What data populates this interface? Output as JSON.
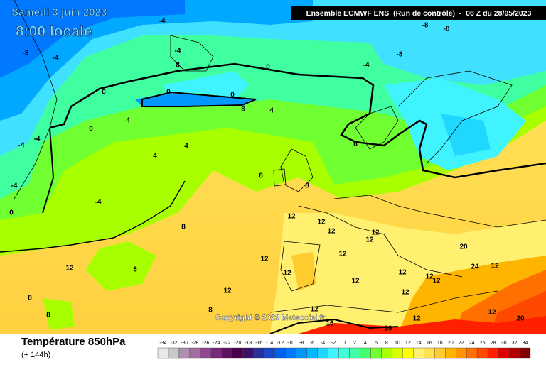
{
  "header": {
    "date": "Samedi 3 juin 2023",
    "time": "8:00 locale",
    "model": "Ensemble ECMWF ENS  (Run de contrôle)  -  06 Z du 28/05/2023"
  },
  "copyright": "Copyright © 2023 Meteociel.fr",
  "footer": {
    "title": "Température 850hPa",
    "lead": "(+ 144h)"
  },
  "map_labels": [
    -4,
    -8,
    -8,
    -8,
    -8,
    -4,
    -4,
    0,
    -4,
    0,
    0,
    0,
    0,
    8,
    4,
    4,
    4,
    4,
    8,
    8,
    8,
    8,
    -4,
    -4,
    0,
    -4,
    -4,
    8,
    12,
    12,
    12,
    12,
    12,
    12,
    12,
    12,
    12,
    12,
    8,
    8,
    8,
    8,
    12,
    12,
    12,
    12,
    12,
    12,
    16,
    20,
    20,
    20,
    24,
    12,
    12,
    12
  ],
  "colorbar": {
    "ticks": [
      -34,
      -32,
      -30,
      -28,
      -26,
      -24,
      -22,
      -20,
      -18,
      -16,
      -14,
      -12,
      -10,
      -8,
      -6,
      -4,
      -2,
      0,
      2,
      4,
      6,
      8,
      10,
      12,
      14,
      16,
      18,
      20,
      22,
      24,
      26,
      28,
      30,
      32,
      34
    ],
    "colors": [
      "#e8e8e8",
      "#c8c8c8",
      "#b090b0",
      "#a070a0",
      "#904890",
      "#782878",
      "#601060",
      "#480048",
      "#3a1068",
      "#28309a",
      "#1848c8",
      "#0060f0",
      "#0078ff",
      "#0098ff",
      "#00b8ff",
      "#20d8ff",
      "#40f4ff",
      "#40ffd8",
      "#40ffa8",
      "#40ff70",
      "#70ff30",
      "#a8ff00",
      "#d8ff00",
      "#ffff00",
      "#fff070",
      "#ffe050",
      "#ffcc30",
      "#ffb400",
      "#ff9400",
      "#ff7000",
      "#ff4800",
      "#ff2000",
      "#e00000",
      "#b00000",
      "#800000"
    ]
  }
}
